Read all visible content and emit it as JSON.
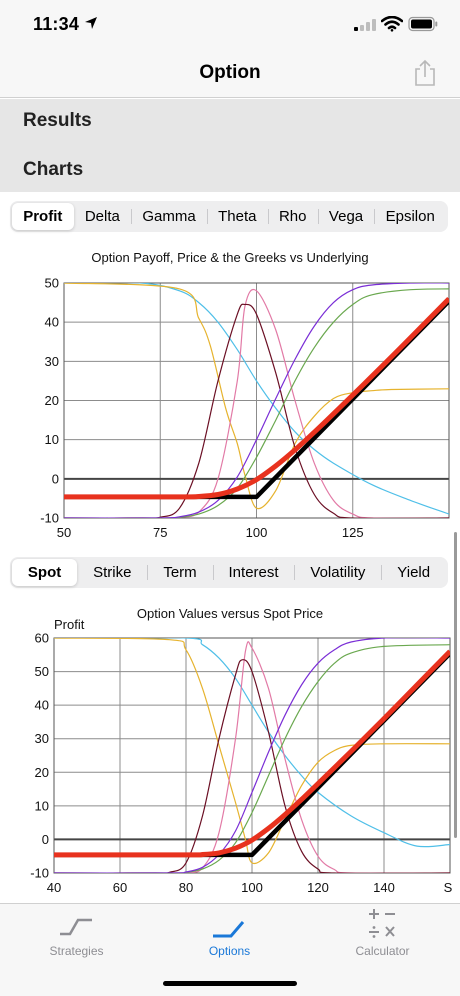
{
  "status": {
    "time": "11:34"
  },
  "nav": {
    "title": "Option"
  },
  "sections": {
    "results": "Results",
    "charts": "Charts"
  },
  "greek_tabs": [
    "Profit",
    "Delta",
    "Gamma",
    "Theta",
    "Rho",
    "Vega",
    "Epsilon"
  ],
  "greek_tabs_selected": 0,
  "variable_tabs": [
    "Spot",
    "Strike",
    "Term",
    "Interest",
    "Volatility",
    "Yield"
  ],
  "variable_tabs_selected": 0,
  "colors": {
    "price": "#e8321e",
    "payoff": "#000000",
    "delta": "#7a2ed6",
    "gamma": "#6b0f24",
    "theta": "#e6b32e",
    "rho": "#6aa84f",
    "vega": "#e27aa6",
    "epsilon": "#4fbfe8",
    "tab_active": "#1a78d8",
    "tab_inactive": "#8e8e93"
  },
  "tabbar": [
    {
      "label": "Strategies",
      "icon": "strategies-icon"
    },
    {
      "label": "Options",
      "icon": "options-icon"
    },
    {
      "label": "Calculator",
      "icon": "calculator-icon"
    }
  ],
  "tabbar_selected": 1,
  "chart_data": [
    {
      "type": "line",
      "title": "Option Payoff, Price & the Greeks vs Underlying",
      "xlabel": "",
      "ylabel": "",
      "xlim": [
        50,
        150
      ],
      "ylim": [
        -10,
        50
      ],
      "xticks": [
        50,
        75,
        100,
        125
      ],
      "yticks": [
        -10,
        0,
        10,
        20,
        30,
        40,
        50
      ],
      "grid": true,
      "strike": 100,
      "series": [
        {
          "key": "payoff",
          "x": [
            50,
            100,
            150
          ],
          "y": [
            -4.6,
            -4.6,
            45.4
          ]
        },
        {
          "key": "price",
          "x": [
            50,
            80,
            85,
            90,
            95,
            100,
            105,
            110,
            115,
            120,
            130,
            140,
            150
          ],
          "y": [
            -4.6,
            -4.6,
            -4.5,
            -4.0,
            -2.6,
            -0.2,
            3.3,
            7.4,
            11.9,
            16.6,
            26.2,
            36.0,
            46.0
          ]
        },
        {
          "key": "delta",
          "x": [
            50,
            75,
            80,
            85,
            90,
            95,
            100,
            105,
            110,
            115,
            120,
            125,
            130,
            140,
            150
          ],
          "y": [
            -10,
            -10,
            -9.7,
            -8.5,
            -5.5,
            0.5,
            10,
            20.5,
            30.5,
            39,
            45,
            48.3,
            49.5,
            50,
            50
          ]
        },
        {
          "key": "rho",
          "x": [
            50,
            75,
            80,
            85,
            90,
            95,
            100,
            105,
            110,
            115,
            120,
            125,
            130,
            140,
            150
          ],
          "y": [
            -10,
            -10,
            -9.8,
            -9.0,
            -6.8,
            -2.4,
            5.5,
            15,
            25,
            33.5,
            40,
            44.5,
            47,
            48.3,
            48.5
          ]
        },
        {
          "key": "gamma",
          "x": [
            50,
            70,
            75,
            80,
            85,
            90,
            95,
            97,
            100,
            105,
            110,
            115,
            120,
            125,
            150
          ],
          "y": [
            -10,
            -10,
            -9.8,
            -7.5,
            4,
            25,
            42,
            44.5,
            42,
            27,
            8,
            -4,
            -8.8,
            -10,
            -10
          ]
        },
        {
          "key": "vega",
          "x": [
            50,
            75,
            80,
            85,
            90,
            95,
            97,
            100,
            105,
            110,
            115,
            120,
            125,
            130,
            150
          ],
          "y": [
            -10,
            -10,
            -9.8,
            -8.5,
            0,
            25,
            44,
            48,
            38,
            20,
            4,
            -5.5,
            -9,
            -10,
            -10
          ]
        },
        {
          "key": "theta",
          "x": [
            50,
            80,
            85,
            88,
            92,
            95,
            97,
            100,
            105,
            110,
            115,
            120,
            125,
            130,
            135,
            150
          ],
          "y": [
            50,
            48.5,
            41,
            34,
            18,
            9,
            1,
            -7.5,
            -3,
            9,
            16,
            20.5,
            22,
            22.5,
            22.8,
            23
          ]
        },
        {
          "key": "epsilon",
          "x": [
            50,
            70,
            80,
            85,
            90,
            95,
            100,
            105,
            110,
            115,
            120,
            130,
            140,
            150
          ],
          "y": [
            50,
            50,
            48,
            45,
            40,
            33,
            25,
            18,
            12,
            7.5,
            4,
            -1.5,
            -5.5,
            -9
          ]
        }
      ]
    },
    {
      "type": "line",
      "title": "Option Values versus Spot Price",
      "xlabel": "S",
      "ylabel": "Profit",
      "xlim": [
        40,
        160
      ],
      "ylim": [
        -10,
        60
      ],
      "xticks": [
        40,
        60,
        80,
        100,
        120,
        140
      ],
      "yticks": [
        -10,
        0,
        10,
        20,
        30,
        40,
        50,
        60
      ],
      "grid": true,
      "strike": 100,
      "series": [
        {
          "key": "payoff",
          "x": [
            40,
            100,
            160
          ],
          "y": [
            -4.6,
            -4.6,
            55.4
          ]
        },
        {
          "key": "price",
          "x": [
            40,
            80,
            85,
            90,
            95,
            100,
            105,
            110,
            115,
            120,
            130,
            140,
            150,
            160
          ],
          "y": [
            -4.6,
            -4.6,
            -4.5,
            -4.0,
            -2.6,
            -0.2,
            3.3,
            7.4,
            11.9,
            16.6,
            26.2,
            36.0,
            46.0,
            56.0
          ]
        },
        {
          "key": "delta",
          "x": [
            40,
            75,
            80,
            85,
            90,
            95,
            100,
            105,
            110,
            115,
            120,
            125,
            130,
            140,
            160
          ],
          "y": [
            -10,
            -10,
            -9.7,
            -8.3,
            -4.5,
            2.5,
            14,
            26,
            37,
            46,
            52.5,
            56.5,
            58.8,
            60,
            60
          ]
        },
        {
          "key": "rho",
          "x": [
            40,
            75,
            80,
            85,
            90,
            95,
            100,
            105,
            110,
            115,
            120,
            125,
            130,
            140,
            160
          ],
          "y": [
            -10,
            -10,
            -9.8,
            -8.8,
            -6.2,
            -1,
            8,
            19,
            30,
            39.5,
            47,
            52.5,
            55.5,
            57.5,
            58
          ]
        },
        {
          "key": "gamma",
          "x": [
            40,
            70,
            75,
            80,
            85,
            90,
            95,
            97,
            100,
            105,
            110,
            115,
            120,
            125,
            160
          ],
          "y": [
            -10,
            -10,
            -9.8,
            -7,
            7,
            30,
            49,
            53.5,
            50,
            32,
            10,
            -3.5,
            -8.8,
            -10,
            -10
          ]
        },
        {
          "key": "vega",
          "x": [
            40,
            75,
            80,
            85,
            90,
            95,
            98,
            100,
            105,
            110,
            115,
            120,
            125,
            130,
            160
          ],
          "y": [
            -10,
            -10,
            -9.8,
            -8.5,
            2,
            30,
            56,
            57,
            45,
            24,
            6,
            -5,
            -9,
            -10,
            -10
          ]
        },
        {
          "key": "theta",
          "x": [
            40,
            75,
            80,
            85,
            90,
            95,
            98,
            100,
            105,
            110,
            115,
            120,
            125,
            130,
            140,
            160
          ],
          "y": [
            60,
            59.5,
            56.5,
            45,
            28,
            11,
            0,
            -7,
            -4,
            6,
            16,
            23,
            26.5,
            28,
            28.5,
            28.5
          ]
        },
        {
          "key": "epsilon",
          "x": [
            40,
            80,
            85,
            90,
            95,
            100,
            105,
            110,
            115,
            120,
            130,
            140,
            150,
            160
          ],
          "y": [
            60,
            60,
            58,
            54,
            48,
            40,
            32,
            25,
            19,
            14,
            7,
            2,
            -2,
            -1.5
          ]
        }
      ]
    }
  ]
}
